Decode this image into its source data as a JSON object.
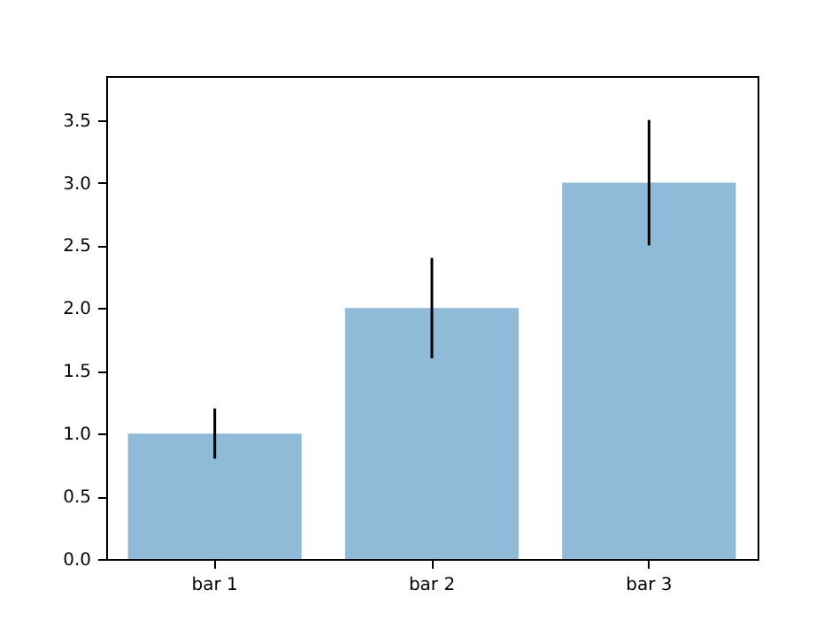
{
  "chart_data": {
    "type": "bar",
    "categories": [
      "bar 1",
      "bar 2",
      "bar 3"
    ],
    "values": [
      1.0,
      2.0,
      3.0
    ],
    "color": "#8fbbd9",
    "errors": [
      0.2,
      0.4,
      0.5
    ],
    "ylim": [
      0,
      3.85
    ],
    "yticks": [
      {
        "value": 0,
        "label": "0.0"
      },
      {
        "value": 0.5,
        "label": "0.5"
      },
      {
        "value": 1,
        "label": "1.0"
      },
      {
        "value": 1.5,
        "label": "1.5"
      },
      {
        "value": 2,
        "label": "2.0"
      },
      {
        "value": 2.5,
        "label": "2.5"
      },
      {
        "value": 3,
        "label": "3.0"
      },
      {
        "value": 3.5,
        "label": "3.5"
      }
    ],
    "grid": false,
    "legend": false
  }
}
